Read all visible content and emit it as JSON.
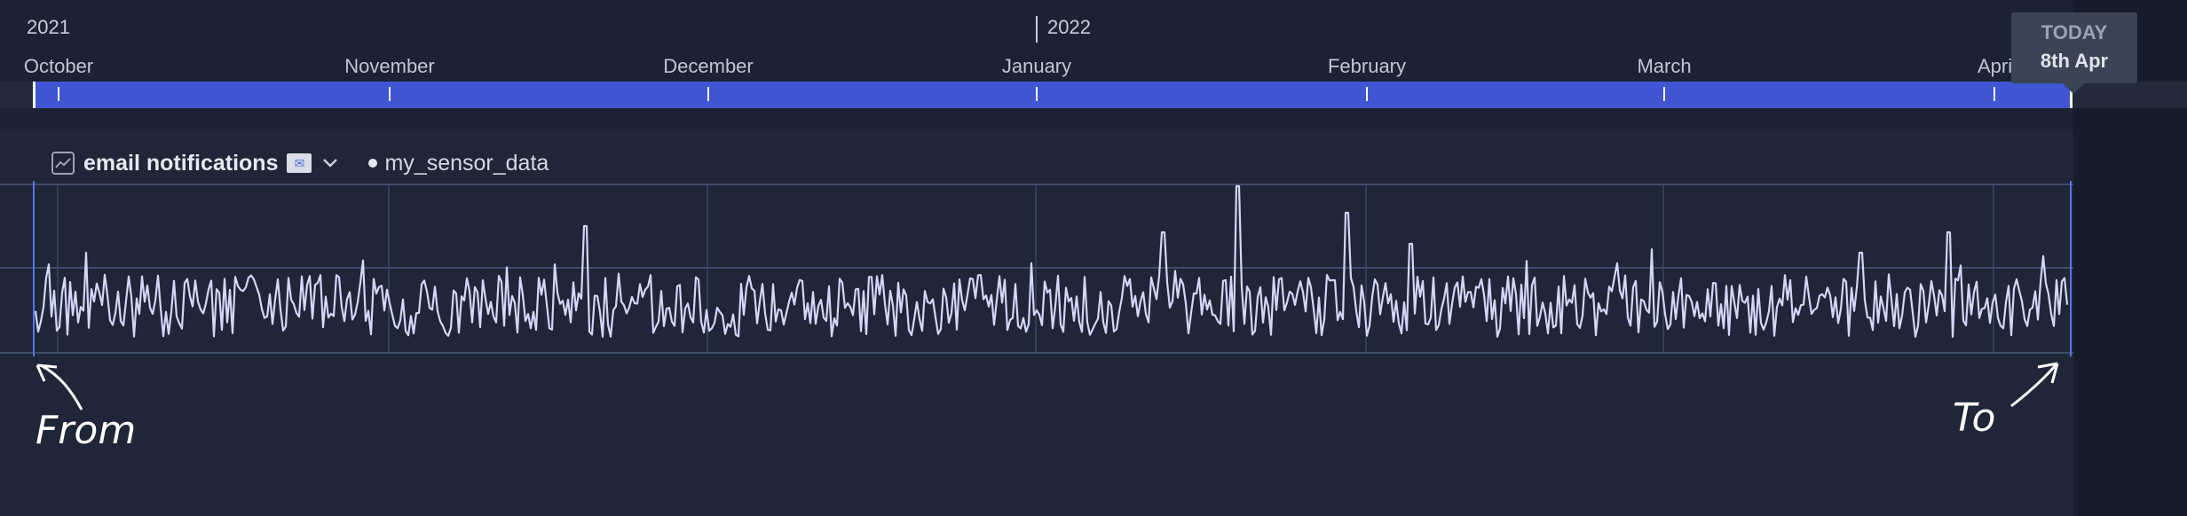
{
  "timeline": {
    "years": [
      {
        "label": "2021",
        "x": 0
      },
      {
        "label": "2022",
        "x": 0
      }
    ],
    "months": [
      "October",
      "November",
      "December",
      "January",
      "February",
      "March",
      "April"
    ],
    "today": {
      "title": "TODAY",
      "date": "8th Apr"
    }
  },
  "panel": {
    "title": "email notifications",
    "emoji": "📧",
    "series_name": "my_sensor_data"
  },
  "annotations": {
    "from": "From",
    "to": "To"
  },
  "colors": {
    "range": "#3f55d2",
    "line": "#d4d6f7",
    "background": "#1b2233"
  }
}
